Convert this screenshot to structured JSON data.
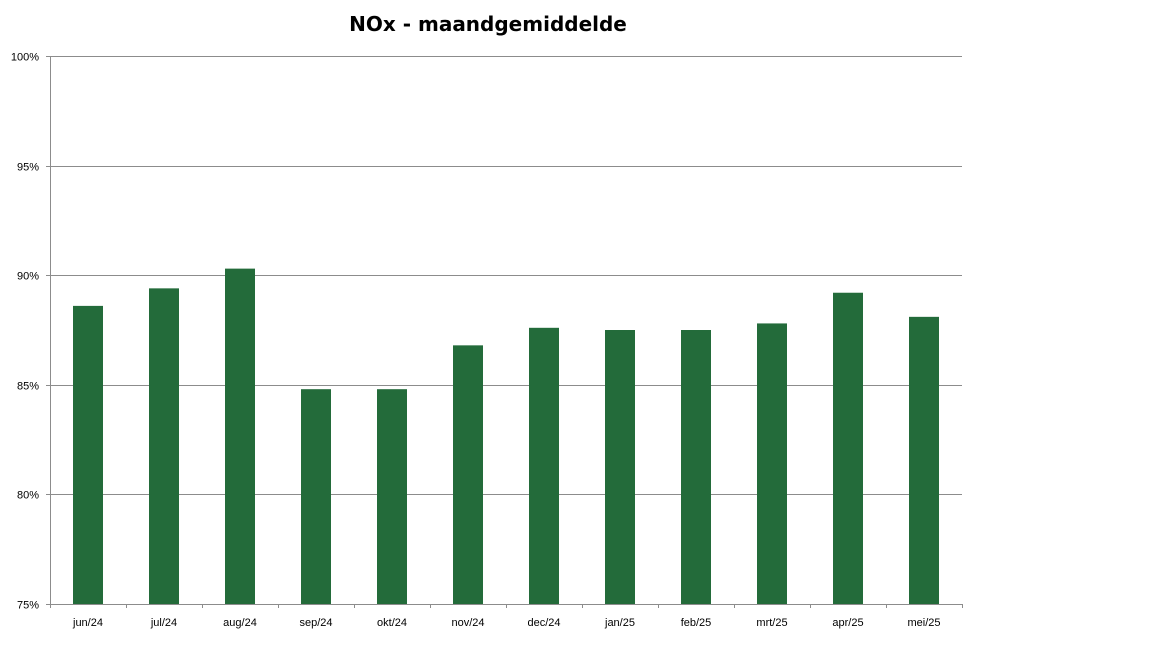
{
  "chart_data": {
    "type": "bar",
    "title": "NOx - maandgemiddelde",
    "xlabel": "",
    "ylabel": "",
    "categories": [
      "jun/24",
      "jul/24",
      "aug/24",
      "sep/24",
      "okt/24",
      "nov/24",
      "dec/24",
      "jan/25",
      "feb/25",
      "mrt/25",
      "apr/25",
      "mei/25"
    ],
    "values": [
      88.6,
      89.4,
      90.3,
      84.8,
      84.8,
      86.8,
      87.6,
      87.5,
      87.5,
      87.8,
      89.2,
      88.1
    ],
    "ylim": [
      75,
      100
    ],
    "yticks": [
      75,
      80,
      85,
      90,
      95,
      100
    ],
    "ytick_labels": [
      "75%",
      "80%",
      "85%",
      "90%",
      "95%",
      "100%"
    ],
    "grid": true,
    "legend": "none",
    "bar_color": "#236b3a"
  }
}
